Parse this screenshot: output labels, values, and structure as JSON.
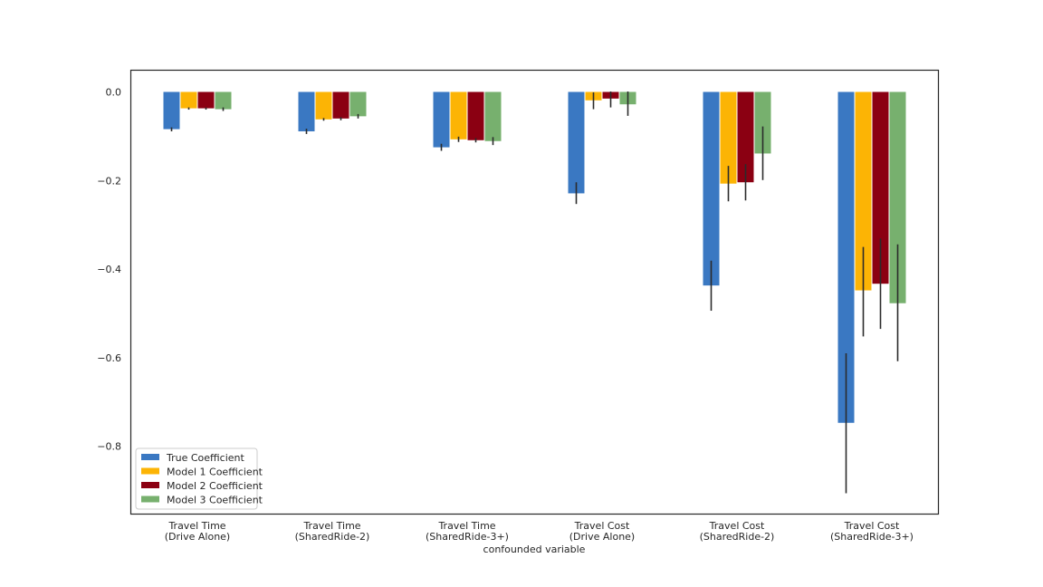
{
  "chart_data": {
    "type": "bar",
    "title": "",
    "xlabel": "confounded variable",
    "ylabel": "",
    "ylim": [
      -0.952,
      0.048
    ],
    "yticks": [
      0.0,
      -0.2,
      -0.4,
      -0.6,
      -0.8
    ],
    "ytick_labels": [
      "0.0",
      "−0.2",
      "−0.4",
      "−0.6",
      "−0.8"
    ],
    "grid": false,
    "legend_position": "lower-left",
    "categories": [
      [
        "Travel Time",
        "(Drive Alone)"
      ],
      [
        "Travel Time",
        "(SharedRide-2)"
      ],
      [
        "Travel Time",
        "(SharedRide-3+)"
      ],
      [
        "Travel Cost",
        "(Drive Alone)"
      ],
      [
        "Travel Cost",
        "(SharedRide-2)"
      ],
      [
        "Travel Cost",
        "(SharedRide-3+)"
      ]
    ],
    "series": [
      {
        "name": "True Coefficient",
        "color": "#3a78c2",
        "values": [
          -0.084,
          -0.089,
          -0.125,
          -0.229,
          -0.437,
          -0.747
        ],
        "err_low": [
          -0.089,
          -0.095,
          -0.133,
          -0.253,
          -0.494,
          -0.906
        ],
        "err_high": [
          -0.08,
          -0.083,
          -0.117,
          -0.204,
          -0.381,
          -0.59
        ]
      },
      {
        "name": "Model 1 Coefficient",
        "color": "#fcb405",
        "values": [
          -0.037,
          -0.062,
          -0.107,
          -0.019,
          -0.207,
          -0.448
        ],
        "err_low": [
          -0.04,
          -0.065,
          -0.113,
          -0.039,
          -0.247,
          -0.552
        ],
        "err_high": [
          -0.035,
          -0.059,
          -0.101,
          -0.001,
          -0.167,
          -0.35
        ]
      },
      {
        "name": "Model 2 Coefficient",
        "color": "#8b0012",
        "values": [
          -0.037,
          -0.06,
          -0.109,
          -0.015,
          -0.204,
          -0.433
        ],
        "err_low": [
          -0.04,
          -0.064,
          -0.114,
          -0.035,
          -0.245,
          -0.535
        ],
        "err_high": [
          -0.035,
          -0.057,
          -0.104,
          0.001,
          -0.163,
          -0.331
        ]
      },
      {
        "name": "Model 3 Coefficient",
        "color": "#77b06e",
        "values": [
          -0.039,
          -0.055,
          -0.111,
          -0.028,
          -0.139,
          -0.477
        ],
        "err_low": [
          -0.043,
          -0.06,
          -0.12,
          -0.054,
          -0.199,
          -0.608
        ],
        "err_high": [
          -0.035,
          -0.05,
          -0.102,
          0.001,
          -0.078,
          -0.344
        ]
      }
    ]
  }
}
